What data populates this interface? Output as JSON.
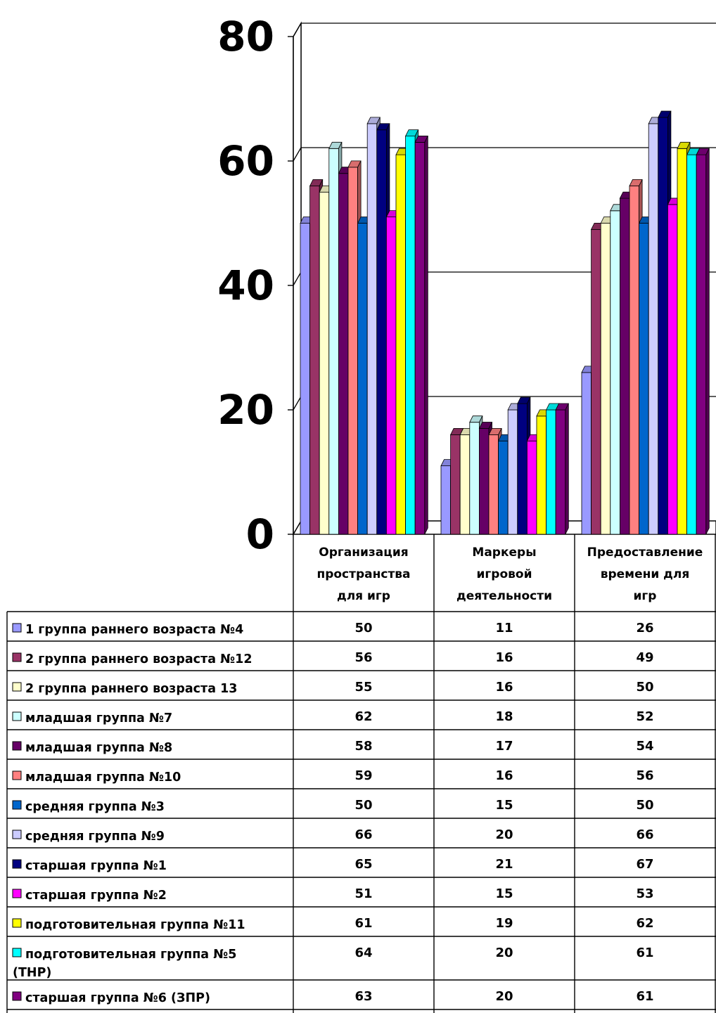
{
  "chart_data": {
    "type": "bar",
    "style": "3d-clustered-column-with-data-table",
    "ylim": [
      0,
      80
    ],
    "yticks": [
      0,
      20,
      40,
      60,
      80
    ],
    "grid": true,
    "categories": [
      [
        "Организация",
        "пространства",
        "для игр"
      ],
      [
        "Маркеры",
        "игровой",
        "деятельности"
      ],
      [
        "Предоставление",
        "времени для",
        "игр"
      ]
    ],
    "series": [
      {
        "name": [
          "1 группа раннего возраста №4"
        ],
        "color": "#9999ff",
        "values": [
          50,
          11,
          26
        ]
      },
      {
        "name": [
          "2 группа раннего возраста №12"
        ],
        "color": "#993366",
        "values": [
          56,
          16,
          49
        ]
      },
      {
        "name": [
          "2 группа раннего возраста 13"
        ],
        "color": "#ffffcc",
        "values": [
          55,
          16,
          50
        ]
      },
      {
        "name": [
          "младшая группа №7"
        ],
        "color": "#ccffff",
        "values": [
          62,
          18,
          52
        ]
      },
      {
        "name": [
          "младшая группа №8"
        ],
        "color": "#660066",
        "values": [
          58,
          17,
          54
        ]
      },
      {
        "name": [
          "младшая группа №10"
        ],
        "color": "#ff8080",
        "values": [
          59,
          16,
          56
        ]
      },
      {
        "name": [
          "средняя группа №3"
        ],
        "color": "#0066cc",
        "values": [
          50,
          15,
          50
        ]
      },
      {
        "name": [
          "средняя группа №9"
        ],
        "color": "#ccccff",
        "values": [
          66,
          20,
          66
        ]
      },
      {
        "name": [
          "старшая группа №1"
        ],
        "color": "#000080",
        "values": [
          65,
          21,
          67
        ]
      },
      {
        "name": [
          "старшая группа №2"
        ],
        "color": "#ff00ff",
        "values": [
          51,
          15,
          53
        ]
      },
      {
        "name": [
          "подготовительная группа №11"
        ],
        "color": "#ffff00",
        "values": [
          61,
          19,
          62
        ]
      },
      {
        "name": [
          "подготовительная группа №5",
          "(ТНР)"
        ],
        "color": "#00ffff",
        "values": [
          64,
          20,
          61
        ]
      },
      {
        "name": [
          "старшая группа №6 (ЗПР)"
        ],
        "color": "#800080",
        "values": [
          63,
          20,
          61
        ]
      }
    ]
  }
}
